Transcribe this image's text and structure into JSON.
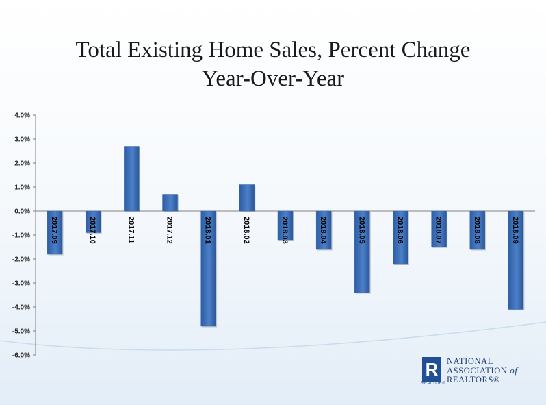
{
  "chart_data": {
    "type": "bar",
    "title": "Total Existing Home Sales, Percent Change",
    "subtitle": "Year-Over-Year",
    "categories": [
      "2017.09",
      "2017.10",
      "2017.11",
      "2017.12",
      "2018.01",
      "2018.02",
      "2018.03",
      "2018.04",
      "2018.05",
      "2018.06",
      "2018.07",
      "2018.08",
      "2018.09"
    ],
    "values": [
      -1.8,
      -0.9,
      2.7,
      0.7,
      -4.8,
      1.1,
      -1.2,
      -1.6,
      -3.4,
      -2.2,
      -1.5,
      -1.6,
      -4.1
    ],
    "ylim": [
      -6.0,
      4.0
    ],
    "yticks": [
      "4.0%",
      "3.0%",
      "2.0%",
      "1.0%",
      "0.0%",
      "-1.0%",
      "-2.0%",
      "-3.0%",
      "-4.0%",
      "-5.0%",
      "-6.0%"
    ],
    "bar_color": "#3a6db5",
    "grid": false,
    "legend": "none"
  },
  "logo": {
    "mark": "R",
    "small_text": "REALTOR®",
    "line1": "NATIONAL",
    "line2_a": "ASSOCIATION",
    "line2_b": "of",
    "line3": "REALTORS®"
  }
}
